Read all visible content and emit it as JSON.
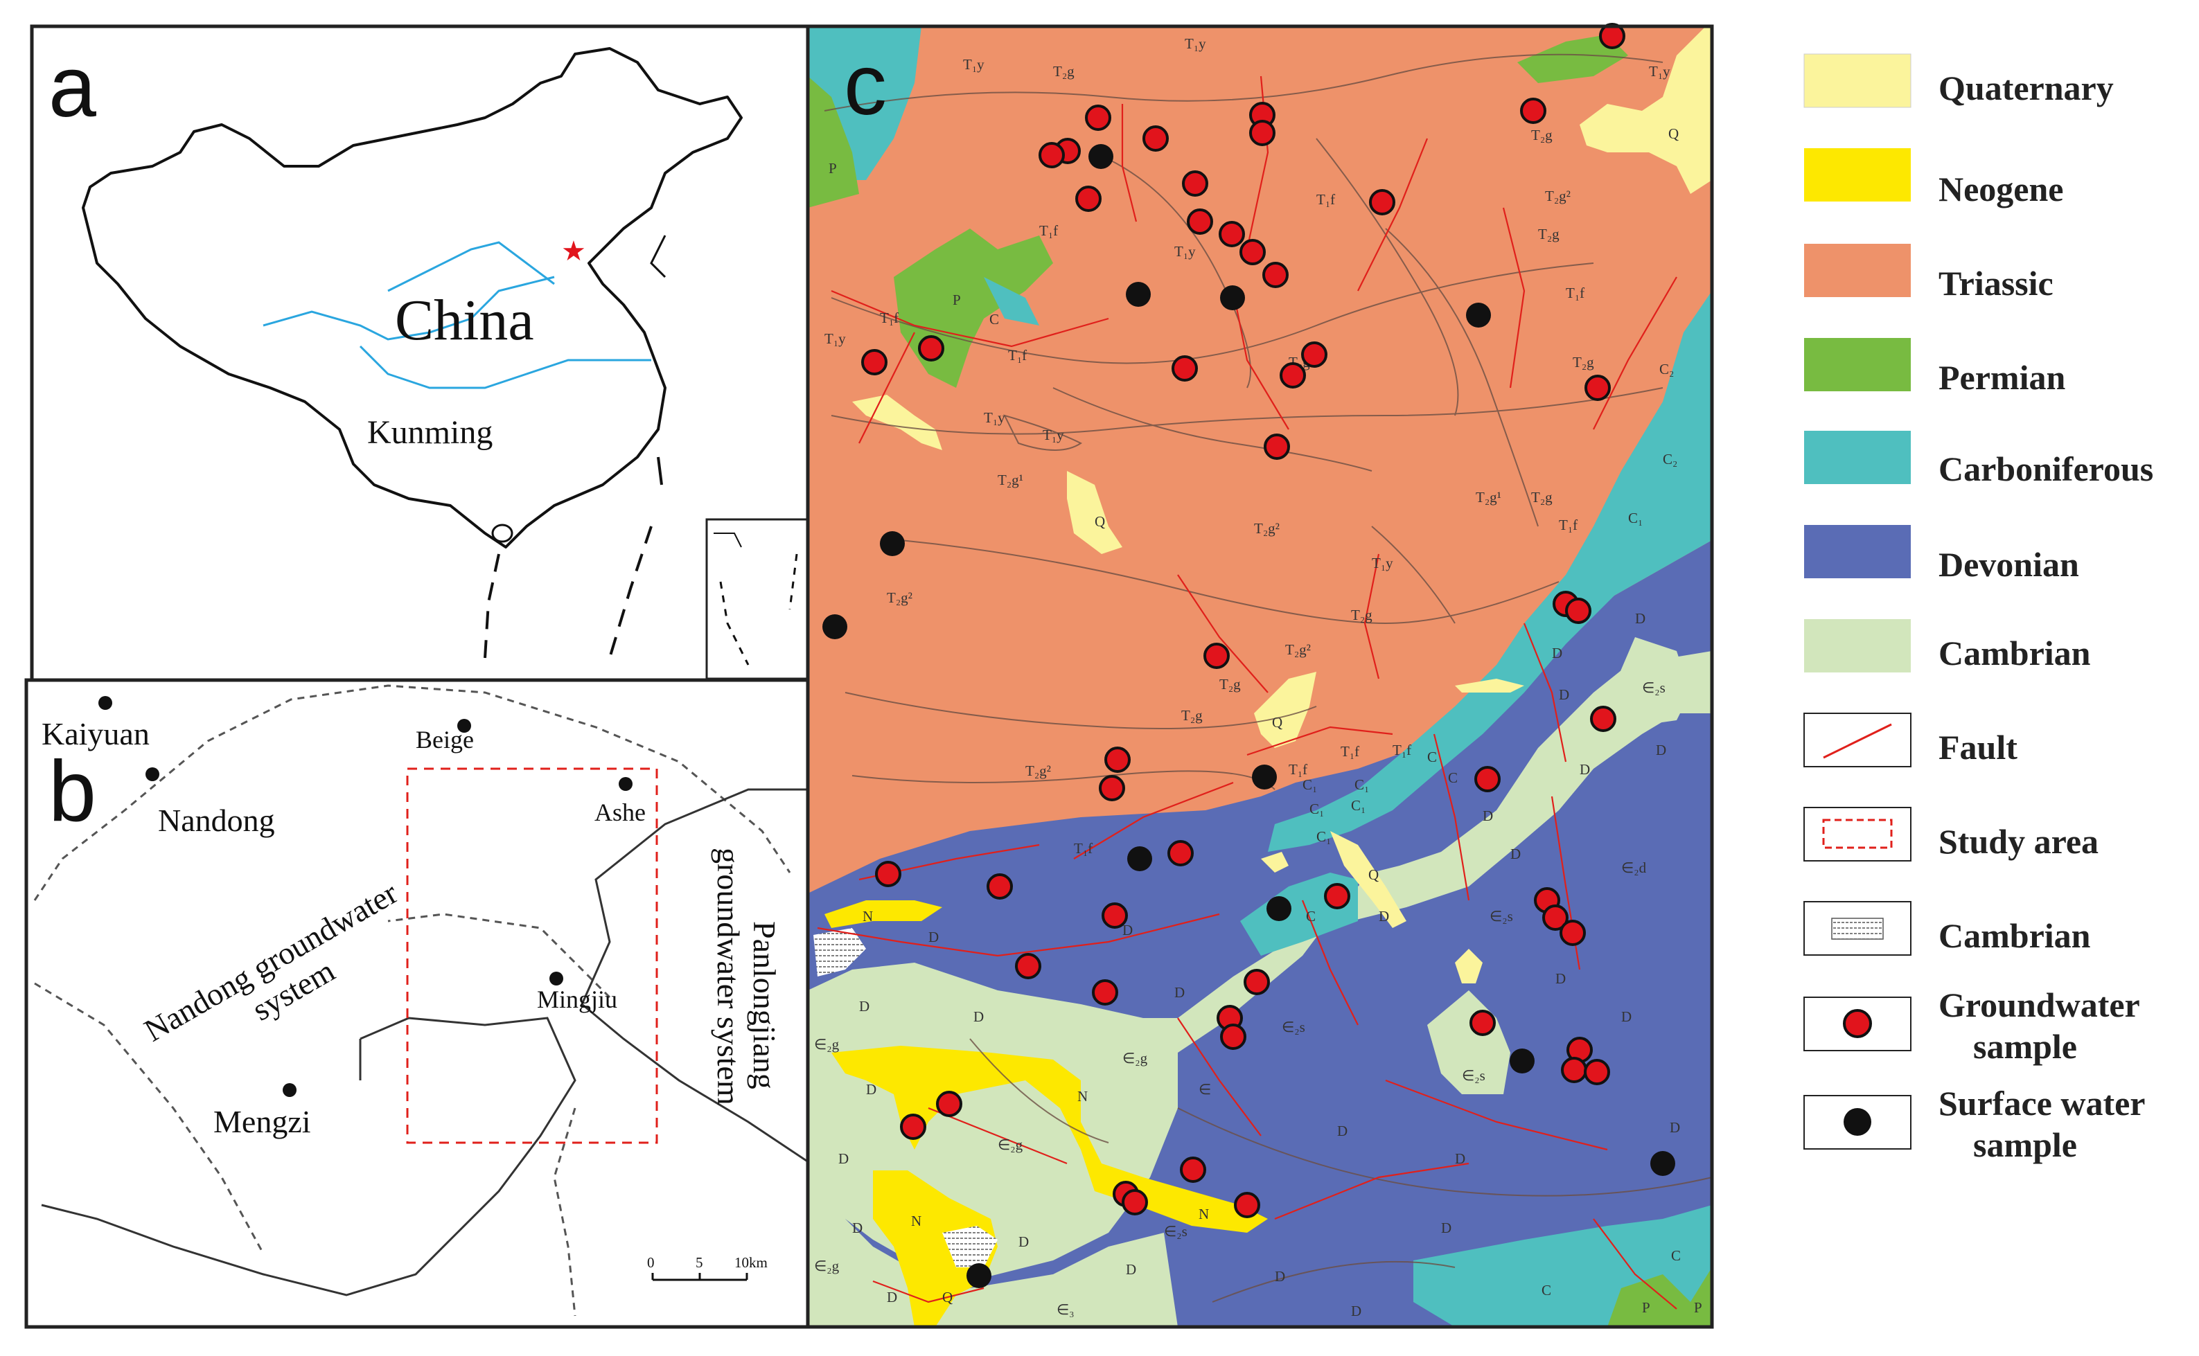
{
  "panels": {
    "a": {
      "letter": "a",
      "country": "China",
      "city": "Kunming"
    },
    "b": {
      "letter": "b",
      "places": {
        "kaiyuan": "Kaiyuan",
        "beige": "Beige",
        "nandong": "Nandong",
        "ashe": "Ashe",
        "mingjiu": "Mingjiu",
        "mengzi": "Mengzi"
      },
      "systems": {
        "nandong_line1": "Nandong groundwater",
        "nandong_line2": "system",
        "panlongjiang_line1": "Panlongjiang",
        "panlongjiang_line2": "groundwater system"
      },
      "scale": {
        "zero": "0",
        "five": "5",
        "ten": "10km"
      }
    },
    "c": {
      "letter": "c"
    }
  },
  "map_labels": {
    "q": "Q",
    "n": "N",
    "p": "P",
    "c": "C",
    "c1": "C₁",
    "c2": "C₂",
    "d": "D",
    "t1y": "T₁y",
    "t1f": "T₁f",
    "t2g": "T₂g",
    "t2g1": "T₂g¹",
    "t2g2": "T₂g²",
    "e2s": "∈₂s",
    "e2g": "∈₂g",
    "e2d": "∈₂d",
    "e3": "∈₃",
    "e": "∈"
  },
  "legend": {
    "quaternary": "Quaternary",
    "neogene": "Neogene",
    "triassic": "Triassic",
    "permian": "Permian",
    "carboniferous": "Carboniferous",
    "devonian": "Devonian",
    "cambrian": "Cambrian",
    "fault": "Fault",
    "study_area": "Study area",
    "cambrian_hatched": "Cambrian",
    "gw_line1": "Groundwater",
    "gw_line2": "sample",
    "sw_line1": "Surface water",
    "sw_line2": "sample"
  },
  "colors": {
    "quaternary": "#fbf49c",
    "neogene": "#fde800",
    "triassic": "#ee926a",
    "permian": "#78bb41",
    "carboniferous": "#4fbfbf",
    "devonian": "#5a6cb5",
    "cambrian": "#d2e6bc",
    "fault": "#e0201b",
    "study_area": "#e0201b",
    "groundwater": "#e1141c",
    "surface_water": "#111111",
    "china_star": "#e1141c",
    "river": "#2aa6df"
  },
  "icons": {
    "groundwater_sample": "red-circle",
    "surface_water_sample": "black-circle",
    "capital": "red-star"
  }
}
